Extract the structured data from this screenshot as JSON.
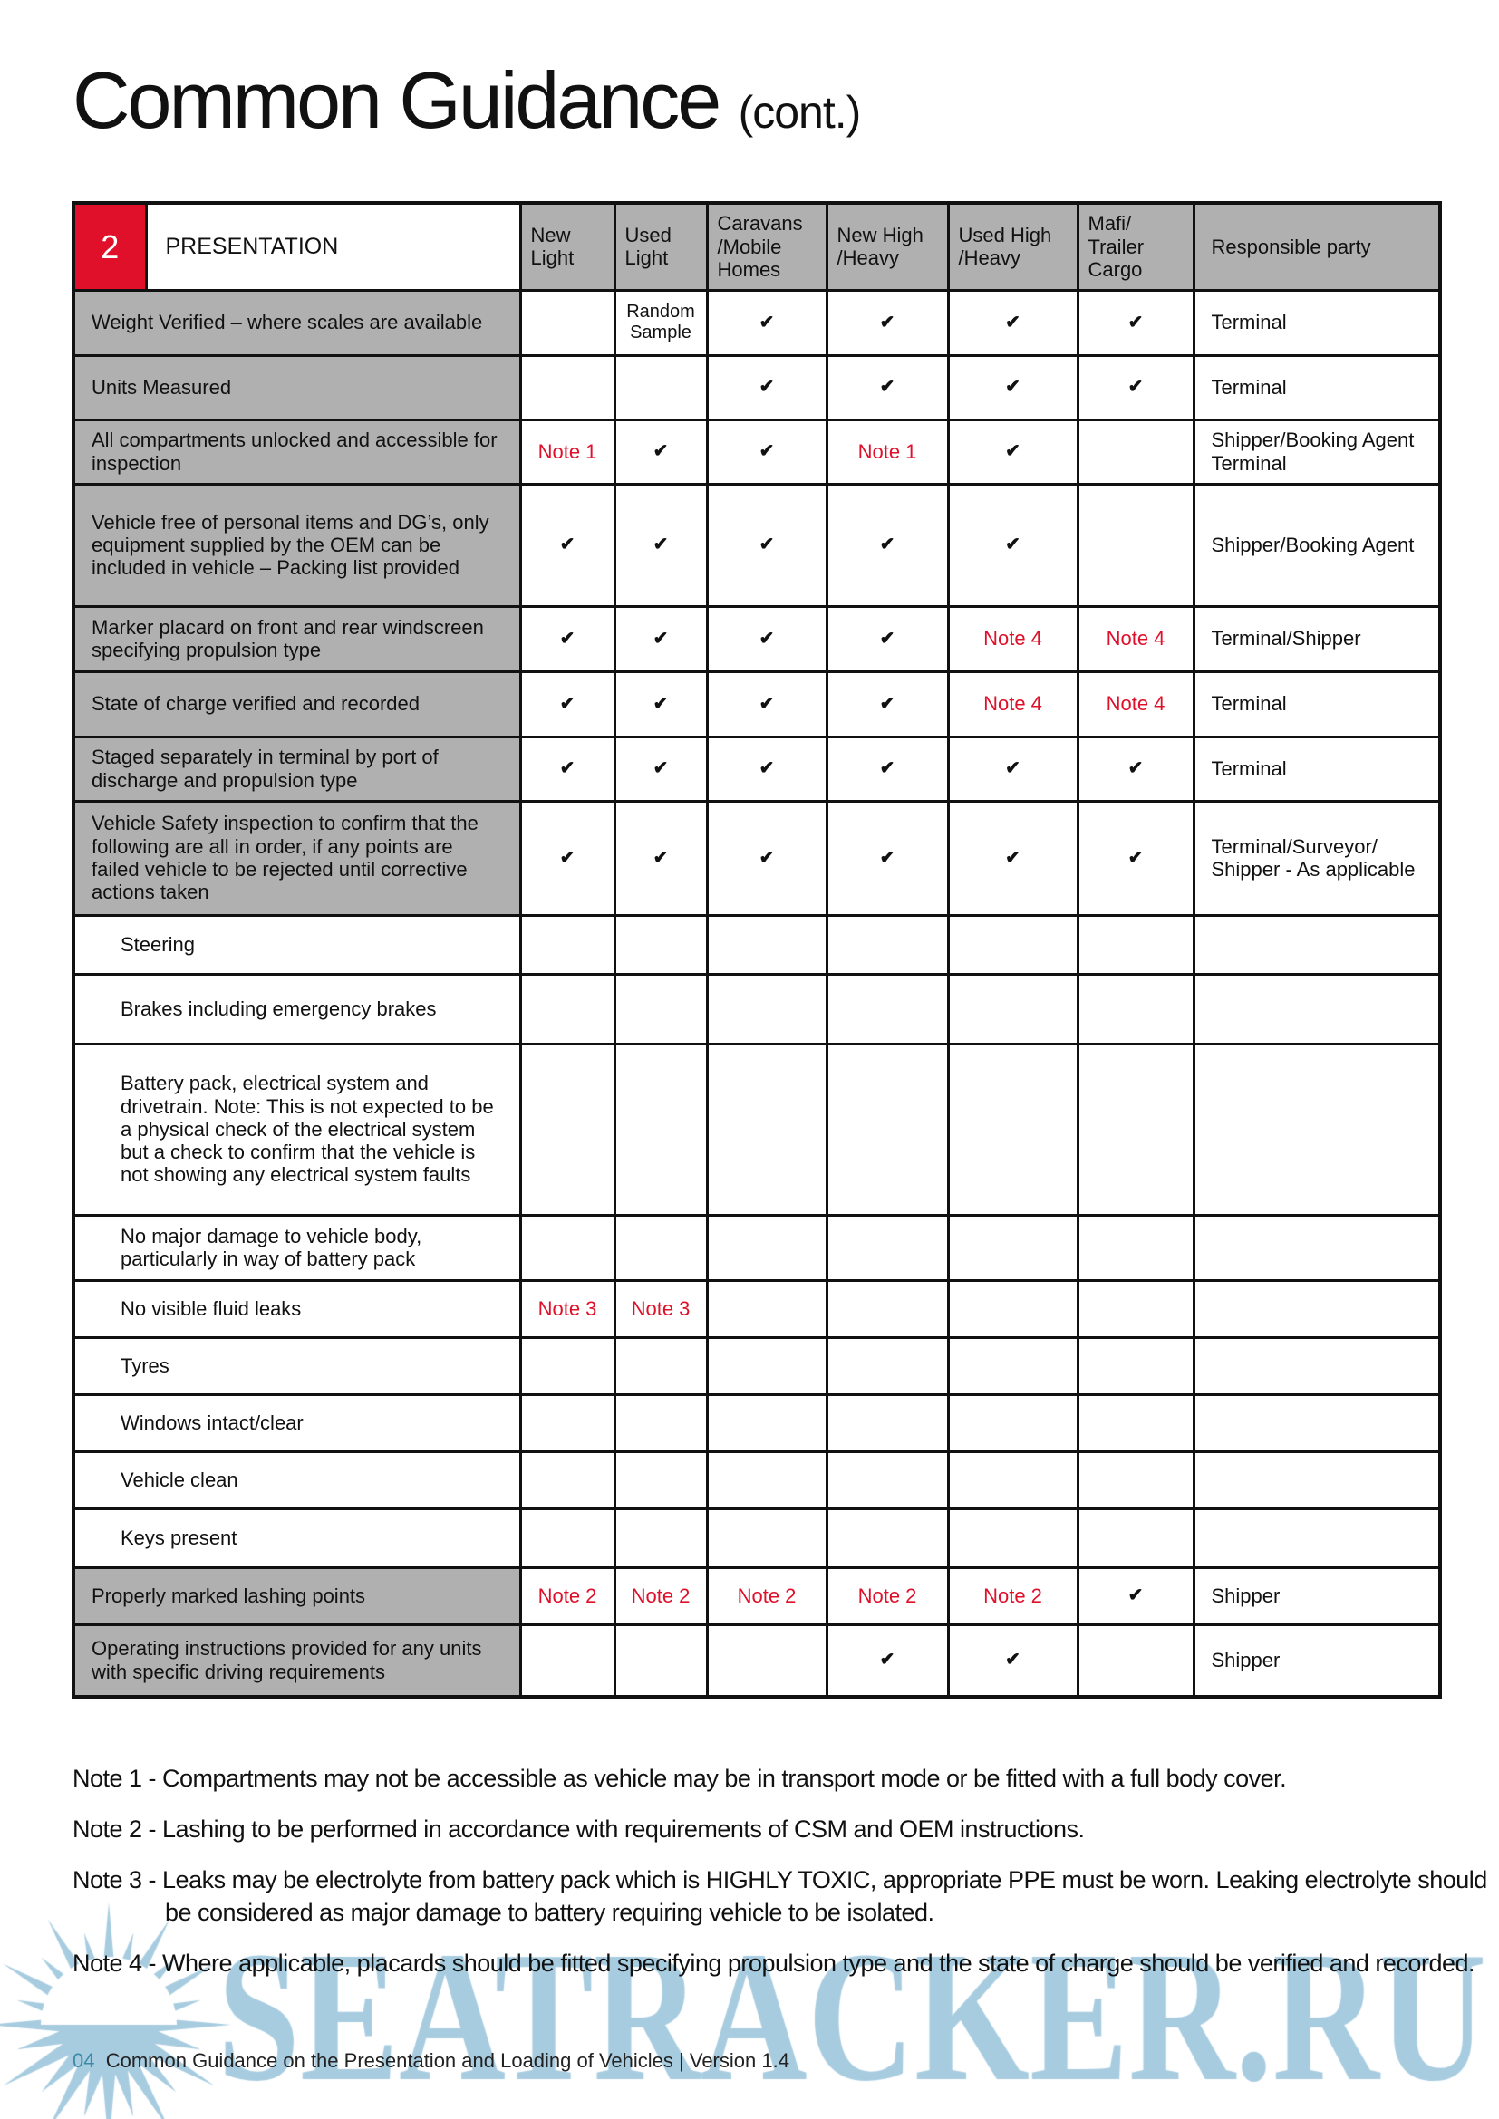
{
  "title": {
    "main": "Common Guidance",
    "suffix": "(cont.)"
  },
  "table": {
    "section_number": "2",
    "section_title": "PRESENTATION",
    "columns": [
      "New Light",
      "Used Light",
      "Caravans /Mobile Homes",
      "New High /Heavy",
      "Used High /Heavy",
      "Mafi/ Trailer Cargo",
      "Responsible party"
    ],
    "rows": [
      {
        "label": "Weight Verified – where scales are available",
        "type": "main",
        "cells": [
          "",
          "Random Sample",
          "✔",
          "✔",
          "✔",
          "✔"
        ],
        "responsible": "Terminal"
      },
      {
        "label": "Units Measured",
        "type": "main",
        "cells": [
          "",
          "",
          "✔",
          "✔",
          "✔",
          "✔"
        ],
        "responsible": "Terminal"
      },
      {
        "label": "All compartments unlocked and accessible for inspection",
        "type": "main",
        "cells": [
          "Note 1",
          "✔",
          "✔",
          "Note 1",
          "✔",
          ""
        ],
        "responsible": "Shipper/Booking Agent Terminal"
      },
      {
        "label": "Vehicle free of personal items and DG’s, only equipment supplied by the OEM can be included in vehicle – Packing list provided",
        "type": "main",
        "cells": [
          "✔",
          "✔",
          "✔",
          "✔",
          "✔",
          ""
        ],
        "responsible": "Shipper/Booking Agent"
      },
      {
        "label": "Marker placard on front and rear windscreen specifying propulsion type",
        "type": "main",
        "cells": [
          "✔",
          "✔",
          "✔",
          "✔",
          "Note 4",
          "Note 4"
        ],
        "responsible": "Terminal/Shipper"
      },
      {
        "label": "State of charge verified and recorded",
        "type": "main",
        "cells": [
          "✔",
          "✔",
          "✔",
          "✔",
          "Note 4",
          "Note 4"
        ],
        "responsible": "Terminal"
      },
      {
        "label": "Staged separately in terminal by port of discharge and propulsion type",
        "type": "main",
        "cells": [
          "✔",
          "✔",
          "✔",
          "✔",
          "✔",
          "✔"
        ],
        "responsible": "Terminal"
      },
      {
        "label": "Vehicle Safety inspection to confirm that the following are all in order, if any points are failed vehicle to be rejected until corrective actions taken",
        "type": "main",
        "cells": [
          "✔",
          "✔",
          "✔",
          "✔",
          "✔",
          "✔"
        ],
        "responsible": "Terminal/Surveyor/ Shipper - As applicable"
      },
      {
        "label": "Steering",
        "type": "sub",
        "cells": [
          "",
          "",
          "",
          "",
          "",
          ""
        ],
        "responsible": ""
      },
      {
        "label": "Brakes including emergency brakes",
        "type": "sub",
        "cells": [
          "",
          "",
          "",
          "",
          "",
          ""
        ],
        "responsible": ""
      },
      {
        "label": "Battery pack, electrical system and drivetrain. Note: This is not expected to be a physical check of the electrical system but a check to confirm that the vehicle is not showing any electrical system faults",
        "type": "sub",
        "cells": [
          "",
          "",
          "",
          "",
          "",
          ""
        ],
        "responsible": ""
      },
      {
        "label": "No major damage to vehicle body, particularly in way of battery pack",
        "type": "sub",
        "cells": [
          "",
          "",
          "",
          "",
          "",
          ""
        ],
        "responsible": ""
      },
      {
        "label": "No visible fluid leaks",
        "type": "sub",
        "cells": [
          "Note 3",
          "Note 3",
          "",
          "",
          "",
          ""
        ],
        "responsible": ""
      },
      {
        "label": "Tyres",
        "type": "sub",
        "cells": [
          "",
          "",
          "",
          "",
          "",
          ""
        ],
        "responsible": ""
      },
      {
        "label": "Windows intact/clear",
        "type": "sub",
        "cells": [
          "",
          "",
          "",
          "",
          "",
          ""
        ],
        "responsible": ""
      },
      {
        "label": "Vehicle clean",
        "type": "sub",
        "cells": [
          "",
          "",
          "",
          "",
          "",
          ""
        ],
        "responsible": ""
      },
      {
        "label": "Keys present",
        "type": "sub",
        "cells": [
          "",
          "",
          "",
          "",
          "",
          ""
        ],
        "responsible": ""
      },
      {
        "label": "Properly marked lashing points",
        "type": "main",
        "cells": [
          "Note 2",
          "Note 2",
          "Note 2",
          "Note 2",
          "Note 2",
          "✔"
        ],
        "responsible": "Shipper"
      },
      {
        "label": "Operating instructions provided for any units with specific driving requirements",
        "type": "main",
        "cells": [
          "",
          "",
          "",
          "✔",
          "✔",
          ""
        ],
        "responsible": "Shipper"
      }
    ]
  },
  "notes": [
    "Note 1 - Compartments may not be accessible as vehicle may be in transport mode or be fitted with a full body cover.",
    "Note 2 - Lashing to be performed in accordance with requirements of CSM and OEM instructions.",
    "Note 3 - Leaks may be electrolyte from battery pack which is HIGHLY TOXIC, appropriate PPE must be worn. Leaking electrolyte should be considered as major damage to battery requiring vehicle to be isolated.",
    "Note 4 - Where applicable, placards should be fitted specifying propulsion type and the state of charge should be verified and recorded."
  ],
  "footer": {
    "page": "04",
    "text": "Common Guidance on the Presentation and Loading of Vehicles  |  Version 1.4"
  },
  "watermark": "SEATRACKER.RU",
  "colors": {
    "accent_red": "#e0102a",
    "header_gray": "#b0b0b0",
    "watermark_blue": "#5fa3c6"
  }
}
